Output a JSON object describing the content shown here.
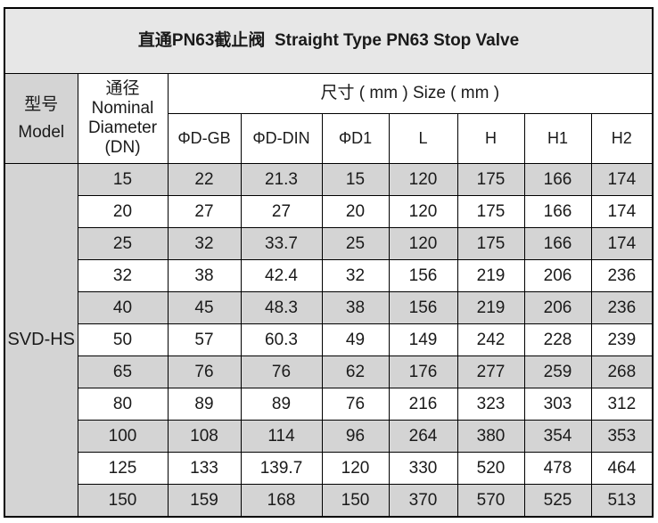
{
  "page": {
    "title": "直通PN63截止阀  Straight Type PN63 Stop Valve"
  },
  "table": {
    "model_header_zh": "型号",
    "model_header_en": "Model",
    "dn_header_lines": [
      "通径",
      "Nominal",
      "Diameter",
      "(DN)"
    ],
    "size_header": "尺寸 ( mm ) Size ( mm )",
    "dim_columns": [
      "ΦD-GB",
      "ΦD-DIN",
      "ΦD1",
      "L",
      "H",
      "H1",
      "H2"
    ],
    "model_value": "SVD-HS",
    "column_headers_full": [
      "型号 Model",
      "通径 Nominal Diameter (DN)",
      "ΦD-GB",
      "ΦD-DIN",
      "ΦD1",
      "L",
      "H",
      "H1",
      "H2"
    ],
    "rows": [
      [
        "15",
        "22",
        "21.3",
        "15",
        "120",
        "175",
        "166",
        "174"
      ],
      [
        "20",
        "27",
        "27",
        "20",
        "120",
        "175",
        "166",
        "174"
      ],
      [
        "25",
        "32",
        "33.7",
        "25",
        "120",
        "175",
        "166",
        "174"
      ],
      [
        "32",
        "38",
        "42.4",
        "32",
        "156",
        "219",
        "206",
        "236"
      ],
      [
        "40",
        "45",
        "48.3",
        "38",
        "156",
        "219",
        "206",
        "236"
      ],
      [
        "50",
        "57",
        "60.3",
        "49",
        "149",
        "242",
        "228",
        "239"
      ],
      [
        "65",
        "76",
        "76",
        "62",
        "176",
        "277",
        "259",
        "268"
      ],
      [
        "80",
        "89",
        "89",
        "76",
        "216",
        "323",
        "303",
        "312"
      ],
      [
        "100",
        "108",
        "114",
        "96",
        "264",
        "380",
        "354",
        "353"
      ],
      [
        "125",
        "133",
        "139.7",
        "120",
        "330",
        "520",
        "478",
        "464"
      ],
      [
        "150",
        "159",
        "168",
        "150",
        "370",
        "570",
        "525",
        "513"
      ]
    ]
  },
  "colors": {
    "title_text": "#17499e",
    "title_background": "#e7e7e7",
    "shaded_cell_background": "#d4d4d4",
    "border": "#000000",
    "body_text": "#1a1a1a"
  }
}
